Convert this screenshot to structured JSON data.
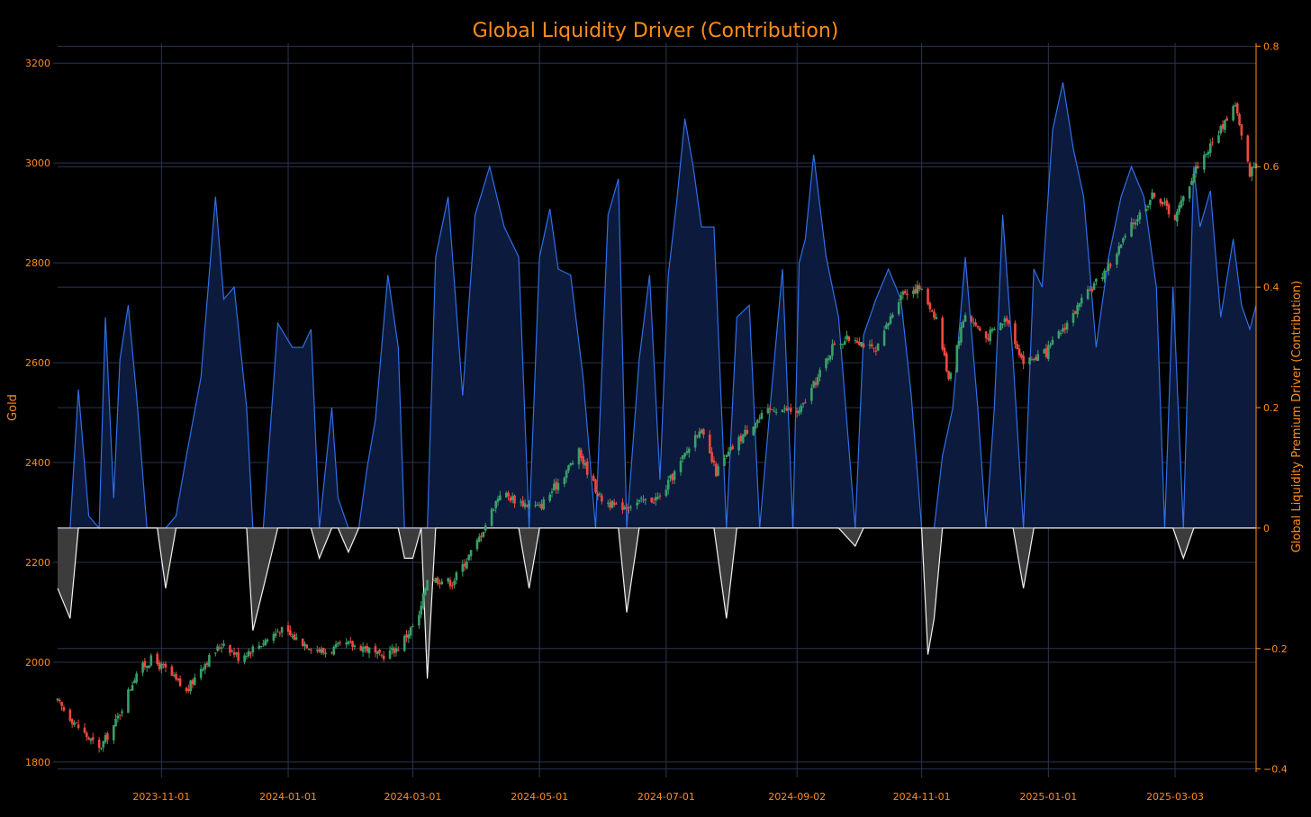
{
  "colors": {
    "background": "#000000",
    "accent": "#ff8c1a",
    "grid": "#2a3550",
    "driver_line": "#2f6fe8",
    "driver_fill": "#0c1a3d",
    "negative_line": "#f2f2f2",
    "negative_fill": "#3c3c3c",
    "candle_up": "#3aa06a",
    "candle_down": "#f2473f"
  },
  "chart_data": {
    "type": "candlestick+area",
    "title": "Global Liquidity Driver (Contribution)",
    "ylabel_left": "Gold",
    "ylabel_right": "Global Liquidity Premium Driver (Contribution)",
    "x_range": [
      "2023-09-12",
      "2025-04-11"
    ],
    "x_ticks": [
      "2023-11-01",
      "2024-01-01",
      "2024-03-01",
      "2024-05-01",
      "2024-07-01",
      "2024-09-02",
      "2024-11-01",
      "2025-01-01",
      "2025-03-03"
    ],
    "y_left_range": [
      1780,
      3240
    ],
    "y_left_ticks": [
      1800,
      2000,
      2200,
      2400,
      2600,
      2800,
      3000,
      3200
    ],
    "y_right_range": [
      -0.405,
      0.805
    ],
    "y_right_ticks": [
      -0.4,
      -0.2,
      0,
      0.2,
      0.4,
      0.6,
      0.8
    ],
    "y_right_tick_labels": [
      "−0.4",
      "−0.2",
      "0",
      "0.2",
      "0.4",
      "0.6",
      "0.8"
    ],
    "grid": true,
    "gold_close": {
      "dates": [
        "2023-09-12",
        "2023-09-22",
        "2023-10-02",
        "2023-10-10",
        "2023-10-20",
        "2023-10-27",
        "2023-11-03",
        "2023-11-13",
        "2023-11-20",
        "2023-12-01",
        "2023-12-08",
        "2023-12-18",
        "2023-12-28",
        "2024-01-08",
        "2024-01-18",
        "2024-01-29",
        "2024-02-07",
        "2024-02-14",
        "2024-02-23",
        "2024-03-04",
        "2024-03-08",
        "2024-03-20",
        "2024-04-01",
        "2024-04-12",
        "2024-04-22",
        "2024-05-01",
        "2024-05-10",
        "2024-05-20",
        "2024-05-30",
        "2024-06-07",
        "2024-06-18",
        "2024-06-28",
        "2024-07-08",
        "2024-07-17",
        "2024-07-25",
        "2024-08-02",
        "2024-08-12",
        "2024-08-22",
        "2024-09-03",
        "2024-09-12",
        "2024-09-20",
        "2024-09-30",
        "2024-10-10",
        "2024-10-22",
        "2024-10-31",
        "2024-11-08",
        "2024-11-14",
        "2024-11-22",
        "2024-12-02",
        "2024-12-12",
        "2024-12-20",
        "2024-12-31",
        "2025-01-10",
        "2025-01-22",
        "2025-01-31",
        "2025-02-11",
        "2025-02-21",
        "2025-03-03",
        "2025-03-13",
        "2025-03-21",
        "2025-04-01",
        "2025-04-04",
        "2025-04-08",
        "2025-04-11"
      ],
      "values": [
        1920,
        1870,
        1825,
        1880,
        1980,
        2005,
        1985,
        1940,
        1990,
        2040,
        2010,
        2035,
        2065,
        2040,
        2020,
        2035,
        2030,
        2010,
        2030,
        2090,
        2170,
        2160,
        2240,
        2340,
        2320,
        2310,
        2360,
        2420,
        2330,
        2310,
        2320,
        2330,
        2400,
        2470,
        2380,
        2430,
        2480,
        2510,
        2500,
        2570,
        2640,
        2650,
        2620,
        2740,
        2750,
        2690,
        2570,
        2700,
        2650,
        2690,
        2600,
        2620,
        2680,
        2750,
        2800,
        2880,
        2940,
        2890,
        2990,
        3040,
        3120,
        3050,
        2980,
        3000
      ]
    },
    "driver": {
      "dates": [
        "2023-09-12",
        "2023-09-18",
        "2023-09-22",
        "2023-09-27",
        "2023-10-02",
        "2023-10-05",
        "2023-10-09",
        "2023-10-12",
        "2023-10-16",
        "2023-10-20",
        "2023-10-25",
        "2023-10-30",
        "2023-11-03",
        "2023-11-08",
        "2023-11-13",
        "2023-11-20",
        "2023-11-27",
        "2023-12-01",
        "2023-12-06",
        "2023-12-12",
        "2023-12-15",
        "2023-12-20",
        "2023-12-27",
        "2024-01-03",
        "2024-01-08",
        "2024-01-12",
        "2024-01-16",
        "2024-01-22",
        "2024-01-25",
        "2024-01-30",
        "2024-02-04",
        "2024-02-08",
        "2024-02-12",
        "2024-02-18",
        "2024-02-23",
        "2024-02-26",
        "2024-03-01",
        "2024-03-05",
        "2024-03-08",
        "2024-03-12",
        "2024-03-18",
        "2024-03-25",
        "2024-03-31",
        "2024-04-07",
        "2024-04-14",
        "2024-04-21",
        "2024-04-26",
        "2024-05-01",
        "2024-05-06",
        "2024-05-10",
        "2024-05-16",
        "2024-05-22",
        "2024-05-28",
        "2024-06-03",
        "2024-06-08",
        "2024-06-12",
        "2024-06-18",
        "2024-06-23",
        "2024-06-28",
        "2024-07-02",
        "2024-07-06",
        "2024-07-10",
        "2024-07-14",
        "2024-07-18",
        "2024-07-24",
        "2024-07-30",
        "2024-08-04",
        "2024-08-10",
        "2024-08-15",
        "2024-08-20",
        "2024-08-26",
        "2024-08-31",
        "2024-09-03",
        "2024-09-06",
        "2024-09-10",
        "2024-09-16",
        "2024-09-22",
        "2024-09-30",
        "2024-10-04",
        "2024-10-10",
        "2024-10-16",
        "2024-10-22",
        "2024-10-27",
        "2024-11-01",
        "2024-11-04",
        "2024-11-07",
        "2024-11-11",
        "2024-11-16",
        "2024-11-22",
        "2024-11-28",
        "2024-12-02",
        "2024-12-06",
        "2024-12-10",
        "2024-12-15",
        "2024-12-20",
        "2024-12-25",
        "2024-12-29",
        "2025-01-03",
        "2025-01-08",
        "2025-01-13",
        "2025-01-18",
        "2025-01-24",
        "2025-01-30",
        "2025-02-05",
        "2025-02-10",
        "2025-02-16",
        "2025-02-22",
        "2025-02-26",
        "2025-03-02",
        "2025-03-07",
        "2025-03-12",
        "2025-03-15",
        "2025-03-20",
        "2025-03-25",
        "2025-03-31",
        "2025-04-04",
        "2025-04-08",
        "2025-04-11"
      ],
      "values": [
        -0.1,
        -0.15,
        0.23,
        0.02,
        0.0,
        0.35,
        0.05,
        0.28,
        0.37,
        0.22,
        0.0,
        0.0,
        -0.1,
        0.02,
        0.12,
        0.25,
        0.55,
        0.38,
        0.4,
        0.2,
        -0.17,
        -0.1,
        0.34,
        0.3,
        0.3,
        0.33,
        -0.05,
        0.2,
        0.05,
        -0.04,
        0.0,
        0.1,
        0.18,
        0.42,
        0.3,
        -0.05,
        -0.05,
        0.0,
        -0.25,
        0.45,
        0.55,
        0.22,
        0.52,
        0.6,
        0.5,
        0.45,
        -0.1,
        0.45,
        0.53,
        0.43,
        0.42,
        0.25,
        0.0,
        0.52,
        0.58,
        -0.14,
        0.28,
        0.42,
        0.08,
        0.42,
        0.54,
        0.68,
        0.6,
        0.5,
        0.5,
        -0.15,
        0.35,
        0.37,
        0.0,
        0.2,
        0.43,
        0.0,
        0.44,
        0.48,
        0.62,
        0.45,
        0.35,
        -0.03,
        0.32,
        0.38,
        0.43,
        0.38,
        0.22,
        0.0,
        -0.21,
        -0.15,
        0.12,
        0.2,
        0.45,
        0.2,
        0.0,
        0.2,
        0.52,
        0.28,
        -0.1,
        0.43,
        0.4,
        0.66,
        0.74,
        0.63,
        0.55,
        0.3,
        0.45,
        0.55,
        0.6,
        0.55,
        0.4,
        0.0,
        0.4,
        -0.05,
        0.6,
        0.5,
        0.56,
        0.35,
        0.48,
        0.37,
        0.33,
        0.37
      ]
    }
  }
}
